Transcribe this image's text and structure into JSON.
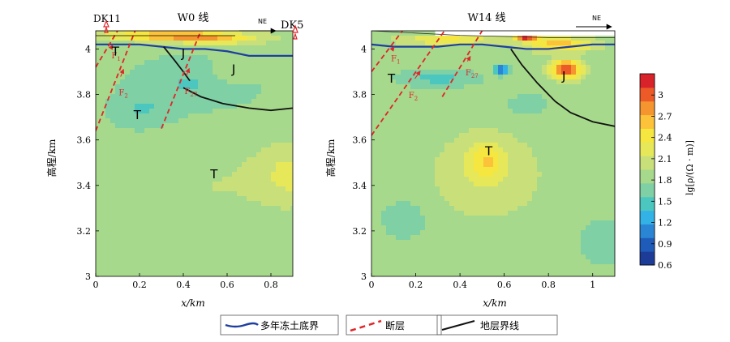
{
  "colors": {
    "permafrost_line": "#1f3fa0",
    "fault_line": "#e0262a",
    "stratum_line": "#111111"
  },
  "chart_data": [
    {
      "type": "heatmap",
      "title": "W0 线",
      "xlabel": "x/km",
      "ylabel": "高程/km",
      "xlim": [
        0,
        0.9
      ],
      "ylim": [
        3.0,
        4.08
      ],
      "xticks": [
        "0",
        "0.2",
        "0.4",
        "0.6",
        "0.8"
      ],
      "yticks": [
        "3",
        "3.2",
        "3.4",
        "3.6",
        "3.8",
        "4"
      ],
      "direction_label": "NE",
      "station_labels": [
        "DK11",
        "DK5"
      ],
      "surface": [
        [
          0,
          4.08
        ],
        [
          0.2,
          4.08
        ],
        [
          0.4,
          4.08
        ],
        [
          0.6,
          4.08
        ],
        [
          0.9,
          4.08
        ]
      ],
      "permafrost_base": [
        [
          0,
          4.02
        ],
        [
          0.1,
          4.02
        ],
        [
          0.2,
          4.02
        ],
        [
          0.3,
          4.01
        ],
        [
          0.4,
          4.0
        ],
        [
          0.5,
          4.0
        ],
        [
          0.6,
          3.99
        ],
        [
          0.7,
          3.97
        ],
        [
          0.8,
          3.97
        ],
        [
          0.9,
          3.97
        ]
      ],
      "stratum_boundaries": [
        [
          [
            0.31,
            4.01
          ],
          [
            0.36,
            3.95
          ],
          [
            0.4,
            3.9
          ],
          [
            0.43,
            3.86
          ]
        ],
        [
          [
            0.4,
            3.83
          ],
          [
            0.48,
            3.79
          ],
          [
            0.58,
            3.76
          ],
          [
            0.7,
            3.74
          ],
          [
            0.8,
            3.73
          ],
          [
            0.9,
            3.74
          ]
        ]
      ],
      "faults": [
        {
          "label": "F1",
          "points": [
            [
              0,
              3.92
            ],
            [
              0.1,
              4.08
            ]
          ]
        },
        {
          "label": "F2",
          "points": [
            [
              0,
              3.64
            ],
            [
              0.18,
              4.08
            ]
          ]
        },
        {
          "label": "F27",
          "points": [
            [
              0.3,
              3.65
            ],
            [
              0.48,
              4.08
            ]
          ]
        }
      ],
      "fault_label_text": {
        "F1": "F",
        "F2": "F",
        "F27": "F"
      },
      "fault_label_sub": {
        "F1": "1",
        "F2": "2",
        "F27": "27"
      },
      "region_labels": [
        {
          "text": "T",
          "x": 0.09,
          "y": 3.99
        },
        {
          "text": "J",
          "x": 0.4,
          "y": 3.98
        },
        {
          "text": "J",
          "x": 0.63,
          "y": 3.91
        },
        {
          "text": "T",
          "x": 0.19,
          "y": 3.71
        },
        {
          "text": "T",
          "x": 0.54,
          "y": 3.45
        }
      ],
      "field": {
        "background": 1.85,
        "blobs": [
          {
            "cx": 0.35,
            "cy": 4.06,
            "sx": 0.3,
            "sy": 0.025,
            "amp": 0.9
          },
          {
            "cx": 0.55,
            "cy": 4.04,
            "sx": 0.2,
            "sy": 0.02,
            "amp": 0.5
          },
          {
            "cx": 0.45,
            "cy": 3.85,
            "sx": 0.3,
            "sy": 0.12,
            "amp": -0.3
          },
          {
            "cx": 0.2,
            "cy": 3.72,
            "sx": 0.15,
            "sy": 0.08,
            "amp": -0.25
          },
          {
            "cx": 0.62,
            "cy": 3.9,
            "sx": 0.1,
            "sy": 0.06,
            "amp": 0.25
          },
          {
            "cx": 0.9,
            "cy": 3.45,
            "sx": 0.15,
            "sy": 0.12,
            "amp": 0.35
          },
          {
            "cx": 0.55,
            "cy": 3.4,
            "sx": 0.35,
            "sy": 0.18,
            "amp": 0.1
          }
        ]
      }
    },
    {
      "type": "heatmap",
      "title": "W14 线",
      "xlabel": "x/km",
      "ylabel": "高程/km",
      "xlim": [
        0,
        1.1
      ],
      "ylim": [
        3.0,
        4.08
      ],
      "xticks": [
        "0",
        "0.2",
        "0.4",
        "0.6",
        "0.8",
        "1"
      ],
      "yticks": [
        "3",
        "3.2",
        "3.4",
        "3.6",
        "3.8",
        "4"
      ],
      "direction_label": "NE",
      "surface": [
        [
          0,
          4.08
        ],
        [
          0.2,
          4.07
        ],
        [
          0.4,
          4.06
        ],
        [
          0.6,
          4.055
        ],
        [
          0.8,
          4.05
        ],
        [
          1.0,
          4.05
        ],
        [
          1.1,
          4.05
        ]
      ],
      "permafrost_base": [
        [
          0,
          4.02
        ],
        [
          0.1,
          4.01
        ],
        [
          0.2,
          4.01
        ],
        [
          0.3,
          4.01
        ],
        [
          0.4,
          4.02
        ],
        [
          0.5,
          4.02
        ],
        [
          0.6,
          4.01
        ],
        [
          0.7,
          4.0
        ],
        [
          0.8,
          4.0
        ],
        [
          0.9,
          4.01
        ],
        [
          1.0,
          4.02
        ],
        [
          1.1,
          4.02
        ]
      ],
      "stratum_boundaries": [
        [
          [
            0.63,
            4.0
          ],
          [
            0.68,
            3.93
          ],
          [
            0.75,
            3.85
          ],
          [
            0.83,
            3.77
          ],
          [
            0.9,
            3.72
          ],
          [
            1.0,
            3.68
          ],
          [
            1.1,
            3.66
          ]
        ]
      ],
      "faults": [
        {
          "label": "F1",
          "points": [
            [
              0,
              3.9
            ],
            [
              0.14,
              4.08
            ]
          ]
        },
        {
          "label": "F2",
          "points": [
            [
              0,
              3.62
            ],
            [
              0.33,
              4.08
            ]
          ]
        },
        {
          "label": "F27",
          "points": [
            [
              0.32,
              3.79
            ],
            [
              0.5,
              4.08
            ]
          ]
        }
      ],
      "fault_label_text": {
        "F1": "F",
        "F2": "F",
        "F27": "F"
      },
      "fault_label_sub": {
        "F1": "1",
        "F2": "2",
        "F27": "27"
      },
      "region_labels": [
        {
          "text": "T",
          "x": 0.09,
          "y": 3.87
        },
        {
          "text": "J",
          "x": 0.87,
          "y": 3.88
        },
        {
          "text": "T",
          "x": 0.53,
          "y": 3.55
        }
      ],
      "field": {
        "background": 1.85,
        "blobs": [
          {
            "cx": 0.3,
            "cy": 3.87,
            "sx": 0.18,
            "sy": 0.04,
            "amp": -0.35
          },
          {
            "cx": 0.59,
            "cy": 3.91,
            "sx": 0.03,
            "sy": 0.02,
            "amp": -1.0
          },
          {
            "cx": 0.88,
            "cy": 3.91,
            "sx": 0.07,
            "sy": 0.04,
            "amp": 1.3
          },
          {
            "cx": 0.85,
            "cy": 4.02,
            "sx": 0.15,
            "sy": 0.03,
            "amp": 0.8
          },
          {
            "cx": 0.7,
            "cy": 4.05,
            "sx": 0.05,
            "sy": 0.015,
            "amp": 1.2
          },
          {
            "cx": 0.35,
            "cy": 4.04,
            "sx": 0.2,
            "sy": 0.02,
            "amp": 0.6
          },
          {
            "cx": 0.52,
            "cy": 3.51,
            "sx": 0.08,
            "sy": 0.08,
            "amp": 0.5
          },
          {
            "cx": 0.52,
            "cy": 3.45,
            "sx": 0.25,
            "sy": 0.2,
            "amp": 0.25
          },
          {
            "cx": 0.15,
            "cy": 3.25,
            "sx": 0.12,
            "sy": 0.1,
            "amp": -0.2
          },
          {
            "cx": 1.05,
            "cy": 3.15,
            "sx": 0.12,
            "sy": 0.12,
            "amp": -0.2
          },
          {
            "cx": 0.7,
            "cy": 3.75,
            "sx": 0.15,
            "sy": 0.08,
            "amp": -0.15
          }
        ]
      }
    }
  ],
  "colorbar": {
    "label": "lg[ρ/(Ω · m)]",
    "ticks": [
      "0.6",
      "0.9",
      "1.2",
      "1.5",
      "1.8",
      "2.1",
      "2.4",
      "2.7",
      "3"
    ],
    "range": [
      0.6,
      3.3
    ],
    "colors": [
      "#1d3c98",
      "#1f5bb8",
      "#2a86d4",
      "#33b2e6",
      "#4cc7c0",
      "#7fd0a4",
      "#a6d98c",
      "#c9e07a",
      "#e6e85a",
      "#f5e640",
      "#fbc23a",
      "#f5952f",
      "#ec5a28",
      "#d8232a"
    ]
  },
  "legend": [
    {
      "key": "permafrost_line",
      "label": "多年冻土底界"
    },
    {
      "key": "fault_line",
      "label": "断层"
    },
    {
      "key": "stratum_line",
      "label": "地层界线"
    }
  ]
}
